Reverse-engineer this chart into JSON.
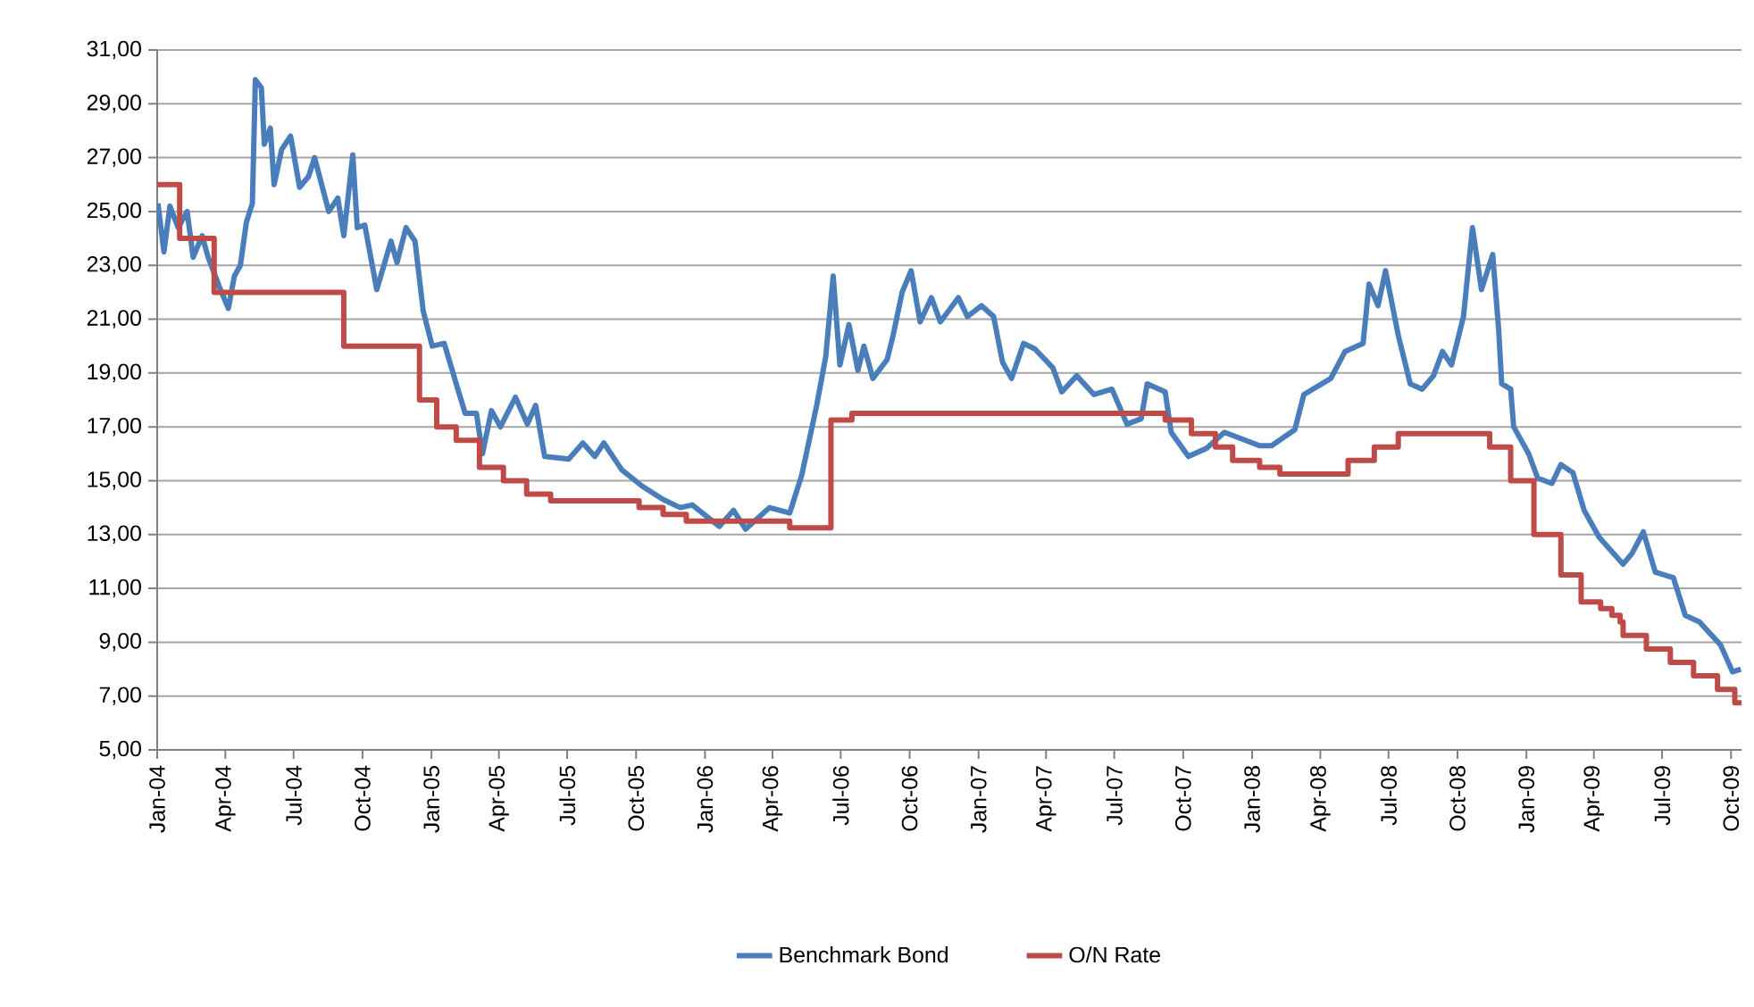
{
  "chart_data": {
    "type": "line",
    "xlim": [
      "2004-01-01",
      "2009-10-15"
    ],
    "ylim": [
      5,
      31
    ],
    "xticks": [
      {
        "value": "2004-01-01",
        "label": "Jan-04"
      },
      {
        "value": "2004-04-01",
        "label": "Apr-04"
      },
      {
        "value": "2004-07-01",
        "label": "Jul-04"
      },
      {
        "value": "2004-10-01",
        "label": "Oct-04"
      },
      {
        "value": "2005-01-01",
        "label": "Jan-05"
      },
      {
        "value": "2005-04-01",
        "label": "Apr-05"
      },
      {
        "value": "2005-07-01",
        "label": "Jul-05"
      },
      {
        "value": "2005-10-01",
        "label": "Oct-05"
      },
      {
        "value": "2006-01-01",
        "label": "Jan-06"
      },
      {
        "value": "2006-04-01",
        "label": "Apr-06"
      },
      {
        "value": "2006-07-01",
        "label": "Jul-06"
      },
      {
        "value": "2006-10-01",
        "label": "Oct-06"
      },
      {
        "value": "2007-01-01",
        "label": "Jan-07"
      },
      {
        "value": "2007-04-01",
        "label": "Apr-07"
      },
      {
        "value": "2007-07-01",
        "label": "Jul-07"
      },
      {
        "value": "2007-10-01",
        "label": "Oct-07"
      },
      {
        "value": "2008-01-01",
        "label": "Jan-08"
      },
      {
        "value": "2008-04-01",
        "label": "Apr-08"
      },
      {
        "value": "2008-07-01",
        "label": "Jul-08"
      },
      {
        "value": "2008-10-01",
        "label": "Oct-08"
      },
      {
        "value": "2009-01-01",
        "label": "Jan-09"
      },
      {
        "value": "2009-04-01",
        "label": "Apr-09"
      },
      {
        "value": "2009-07-01",
        "label": "Jul-09"
      },
      {
        "value": "2009-10-01",
        "label": "Oct-09"
      }
    ],
    "yticks": [
      {
        "value": 5,
        "label": "5,00"
      },
      {
        "value": 7,
        "label": "7,00"
      },
      {
        "value": 9,
        "label": "9,00"
      },
      {
        "value": 11,
        "label": "11,00"
      },
      {
        "value": 13,
        "label": "13,00"
      },
      {
        "value": 15,
        "label": "15,00"
      },
      {
        "value": 17,
        "label": "17,00"
      },
      {
        "value": 19,
        "label": "19,00"
      },
      {
        "value": 21,
        "label": "21,00"
      },
      {
        "value": 23,
        "label": "23,00"
      },
      {
        "value": 25,
        "label": "25,00"
      },
      {
        "value": 27,
        "label": "27,00"
      },
      {
        "value": 29,
        "label": "29,00"
      },
      {
        "value": 31,
        "label": "31,00"
      }
    ],
    "grid": "y",
    "legend": "bottom",
    "marker": "none",
    "line_style": "solid",
    "series": [
      {
        "name": "Benchmark Bond",
        "color": "#4a7ebb",
        "type": "line",
        "x": [
          "2004-01-02",
          "2004-01-10",
          "2004-01-18",
          "2004-01-29",
          "2004-02-10",
          "2004-02-18",
          "2004-03-01",
          "2004-03-09",
          "2004-03-24",
          "2004-04-05",
          "2004-04-13",
          "2004-04-21",
          "2004-04-29",
          "2004-05-07",
          "2004-05-11",
          "2004-05-19",
          "2004-05-23",
          "2004-05-31",
          "2004-06-05",
          "2004-06-15",
          "2004-06-27",
          "2004-07-09",
          "2004-07-21",
          "2004-07-29",
          "2004-08-17",
          "2004-08-29",
          "2004-09-06",
          "2004-09-18",
          "2004-09-24",
          "2004-10-04",
          "2004-10-20",
          "2004-11-08",
          "2004-11-16",
          "2004-11-28",
          "2004-12-10",
          "2004-12-21",
          "2005-01-02",
          "2005-01-18",
          "2005-02-03",
          "2005-02-15",
          "2005-03-02",
          "2005-03-10",
          "2005-03-22",
          "2005-04-03",
          "2005-04-23",
          "2005-05-09",
          "2005-05-20",
          "2005-06-01",
          "2005-07-03",
          "2005-07-22",
          "2005-08-07",
          "2005-08-19",
          "2005-09-12",
          "2005-10-09",
          "2005-11-06",
          "2005-11-29",
          "2005-12-15",
          "2006-01-20",
          "2006-02-08",
          "2006-02-24",
          "2006-03-28",
          "2006-04-24",
          "2006-05-10",
          "2006-05-30",
          "2006-06-11",
          "2006-06-21",
          "2006-06-30",
          "2006-07-12",
          "2006-07-24",
          "2006-08-01",
          "2006-08-13",
          "2006-09-01",
          "2006-09-09",
          "2006-09-21",
          "2006-10-03",
          "2006-10-15",
          "2006-10-30",
          "2006-11-11",
          "2006-12-05",
          "2006-12-17",
          "2007-01-05",
          "2007-01-21",
          "2007-02-02",
          "2007-02-14",
          "2007-03-02",
          "2007-03-17",
          "2007-04-10",
          "2007-04-22",
          "2007-05-12",
          "2007-06-04",
          "2007-06-28",
          "2007-07-18",
          "2007-08-06",
          "2007-08-14",
          "2007-09-07",
          "2007-09-15",
          "2007-10-08",
          "2007-11-01",
          "2007-11-25",
          "2008-01-11",
          "2008-01-27",
          "2008-02-27",
          "2008-03-10",
          "2008-04-15",
          "2008-05-04",
          "2008-05-28",
          "2008-06-05",
          "2008-06-17",
          "2008-06-27",
          "2008-07-14",
          "2008-07-30",
          "2008-08-15",
          "2008-08-30",
          "2008-09-11",
          "2008-09-23",
          "2008-10-09",
          "2008-10-21",
          "2008-11-02",
          "2008-11-17",
          "2008-11-25",
          "2008-11-29",
          "2008-12-11",
          "2008-12-15",
          "2009-01-04",
          "2009-01-16",
          "2009-02-04",
          "2009-02-16",
          "2009-03-04",
          "2009-03-19",
          "2009-04-08",
          "2009-05-10",
          "2009-05-22",
          "2009-06-06",
          "2009-06-22",
          "2009-07-16",
          "2009-08-01",
          "2009-08-20",
          "2009-09-17",
          "2009-10-03",
          "2009-10-14"
        ],
        "values": [
          25.3,
          23.5,
          25.2,
          24.4,
          25.0,
          23.3,
          24.1,
          23.3,
          22.2,
          21.4,
          22.6,
          23.0,
          24.6,
          25.3,
          29.9,
          29.6,
          27.5,
          28.1,
          26.0,
          27.3,
          27.8,
          25.9,
          26.3,
          27.0,
          25.0,
          25.5,
          24.1,
          27.1,
          24.4,
          24.5,
          22.1,
          23.9,
          23.1,
          24.4,
          23.9,
          21.3,
          20.0,
          20.1,
          18.6,
          17.5,
          17.5,
          16.0,
          17.6,
          17.0,
          18.1,
          17.1,
          17.8,
          15.9,
          15.8,
          16.4,
          15.9,
          16.4,
          15.4,
          14.8,
          14.3,
          14.0,
          14.1,
          13.3,
          13.9,
          13.2,
          14.0,
          13.8,
          15.2,
          17.8,
          19.6,
          22.6,
          19.3,
          20.8,
          19.1,
          20.0,
          18.8,
          19.5,
          20.4,
          22.0,
          22.8,
          20.9,
          21.8,
          20.9,
          21.8,
          21.1,
          21.5,
          21.1,
          19.4,
          18.8,
          20.1,
          19.9,
          19.2,
          18.3,
          18.9,
          18.2,
          18.4,
          17.1,
          17.3,
          18.6,
          18.3,
          16.8,
          15.9,
          16.2,
          16.8,
          16.3,
          16.3,
          16.9,
          18.2,
          18.8,
          19.8,
          20.1,
          22.3,
          21.5,
          22.8,
          20.4,
          18.6,
          18.4,
          18.9,
          19.8,
          19.3,
          21.1,
          24.4,
          22.1,
          23.4,
          20.6,
          18.6,
          18.4,
          17.0,
          16.0,
          15.1,
          14.9,
          15.6,
          15.3,
          13.9,
          12.9,
          11.9,
          12.3,
          13.1,
          11.6,
          11.4,
          10.0,
          9.75,
          8.9,
          7.9,
          8.0
        ]
      },
      {
        "name": "O/N Rate",
        "color": "#be4b48",
        "type": "step",
        "x": [
          "2004-01-01",
          "2004-01-31",
          "2004-03-17",
          "2004-09-06",
          "2004-12-16",
          "2005-01-08",
          "2005-02-03",
          "2005-03-06",
          "2005-04-07",
          "2005-05-08",
          "2005-06-09",
          "2005-10-05",
          "2005-11-06",
          "2005-12-07",
          "2006-04-24",
          "2006-06-18",
          "2006-07-16",
          "2007-09-07",
          "2007-10-12",
          "2007-11-13",
          "2007-12-06",
          "2008-01-11",
          "2008-02-07",
          "2008-05-08",
          "2008-06-12",
          "2008-07-14",
          "2008-11-13",
          "2008-12-11",
          "2009-01-11",
          "2009-02-16",
          "2009-03-15",
          "2009-04-10",
          "2009-04-25",
          "2009-05-06",
          "2009-05-10",
          "2009-06-10",
          "2009-07-12",
          "2009-08-12",
          "2009-09-13",
          "2009-10-06",
          "2009-10-15"
        ],
        "values": [
          26.0,
          24.0,
          22.0,
          20.0,
          18.0,
          17.0,
          16.5,
          15.5,
          15.0,
          14.5,
          14.25,
          14.0,
          13.75,
          13.5,
          13.25,
          17.25,
          17.5,
          17.25,
          16.75,
          16.25,
          15.75,
          15.5,
          15.25,
          15.75,
          16.25,
          16.75,
          16.25,
          15.0,
          13.0,
          11.5,
          10.5,
          10.25,
          10.0,
          9.75,
          9.25,
          8.75,
          8.25,
          7.75,
          7.25,
          6.75,
          6.75
        ]
      }
    ]
  }
}
